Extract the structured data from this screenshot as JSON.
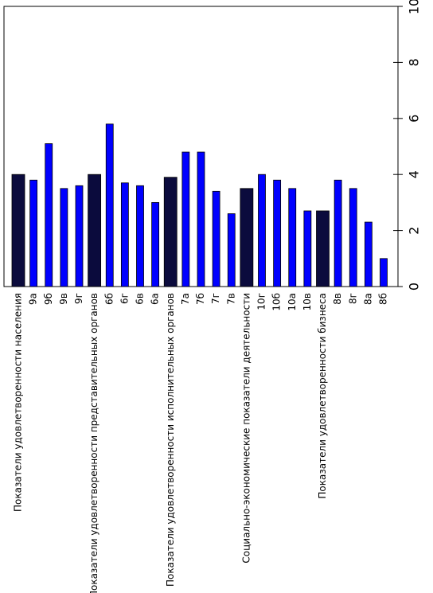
{
  "chart_data": {
    "type": "bar",
    "categories": [
      "Показатели удовлетворенности населения",
      "9а",
      "9б",
      "9в",
      "9г",
      "Показатели удовлетворенности представительных органов",
      "6б",
      "6г",
      "6в",
      "6а",
      "Показатели удовлетворенности исполнительных органов",
      "7а",
      "7б",
      "7г",
      "7в",
      "Социально-экономические показатели деятельности",
      "10г",
      "10б",
      "10а",
      "10в",
      "Показатели удовлетворенности бизнеса",
      "8в",
      "8г",
      "8а",
      "8б"
    ],
    "values": [
      4.0,
      3.8,
      5.1,
      3.5,
      3.6,
      4.0,
      5.8,
      3.7,
      3.6,
      3.0,
      3.9,
      4.8,
      4.8,
      3.4,
      2.6,
      3.5,
      4.0,
      3.8,
      3.5,
      2.7,
      2.7,
      3.8,
      3.5,
      2.3,
      1.0
    ],
    "colors": [
      "#0b0b3d",
      "#0000ff",
      "#0000ff",
      "#0000ff",
      "#0000ff",
      "#0b0b3d",
      "#0000ff",
      "#0000ff",
      "#0000ff",
      "#0000ff",
      "#0b0b3d",
      "#0000ff",
      "#0000ff",
      "#0000ff",
      "#0000ff",
      "#0b0b3d",
      "#0000ff",
      "#0000ff",
      "#0000ff",
      "#0000ff",
      "#0b0b3d",
      "#0000ff",
      "#0000ff",
      "#0000ff",
      "#0000ff"
    ],
    "ylim": [
      0,
      10
    ],
    "yticks": [
      0,
      2,
      4,
      6,
      8,
      10
    ]
  }
}
